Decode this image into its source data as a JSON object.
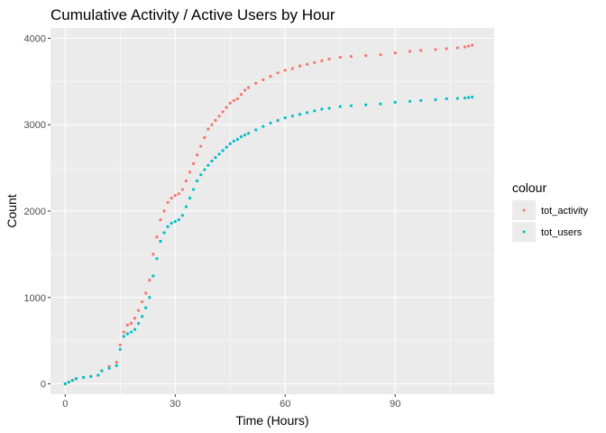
{
  "chart_data": {
    "type": "scatter",
    "title": "Cumulative Activity / Active Users by Hour",
    "xlabel": "Time (Hours)",
    "ylabel": "Count",
    "xlim": [
      -4,
      117
    ],
    "ylim": [
      -120,
      4120
    ],
    "x_ticks": [
      0,
      30,
      60,
      90
    ],
    "x_tick_labels": [
      "0",
      "30",
      "60",
      "90"
    ],
    "y_ticks": [
      0,
      1000,
      2000,
      3000,
      4000
    ],
    "y_tick_labels": [
      "0",
      "1000",
      "2000",
      "3000",
      "4000"
    ],
    "grid": true,
    "legend": {
      "title": "colour",
      "placement": "right"
    },
    "series": [
      {
        "name": "tot_activity",
        "color": "#F8766D",
        "x": [
          0,
          1,
          2,
          3,
          5,
          7,
          9,
          10,
          12,
          14,
          15,
          16,
          17,
          18,
          19,
          20,
          21,
          22,
          23,
          24,
          25,
          26,
          27,
          28,
          29,
          30,
          31,
          32,
          33,
          34,
          35,
          36,
          37,
          38,
          39,
          40,
          41,
          42,
          43,
          44,
          45,
          46,
          47,
          48,
          49,
          50,
          52,
          54,
          56,
          58,
          60,
          62,
          64,
          66,
          68,
          70,
          72,
          75,
          78,
          82,
          86,
          90,
          94,
          97,
          101,
          104,
          107,
          109,
          110,
          111
        ],
        "y": [
          0,
          20,
          40,
          60,
          75,
          85,
          100,
          150,
          200,
          250,
          450,
          600,
          680,
          700,
          760,
          850,
          950,
          1050,
          1200,
          1500,
          1700,
          1900,
          2000,
          2100,
          2150,
          2180,
          2200,
          2250,
          2350,
          2450,
          2550,
          2650,
          2750,
          2850,
          2950,
          3000,
          3050,
          3100,
          3150,
          3200,
          3250,
          3280,
          3300,
          3350,
          3400,
          3430,
          3480,
          3520,
          3560,
          3600,
          3630,
          3650,
          3680,
          3700,
          3720,
          3740,
          3760,
          3780,
          3790,
          3800,
          3810,
          3830,
          3850,
          3860,
          3870,
          3880,
          3890,
          3900,
          3910,
          3920
        ]
      },
      {
        "name": "tot_users",
        "color": "#00BFC4",
        "x": [
          0,
          1,
          2,
          3,
          5,
          7,
          9,
          10,
          12,
          14,
          15,
          16,
          17,
          18,
          19,
          20,
          21,
          22,
          23,
          24,
          25,
          26,
          27,
          28,
          29,
          30,
          31,
          32,
          33,
          34,
          35,
          36,
          37,
          38,
          39,
          40,
          41,
          42,
          43,
          44,
          45,
          46,
          47,
          48,
          49,
          50,
          52,
          54,
          56,
          58,
          60,
          62,
          64,
          66,
          68,
          70,
          72,
          75,
          78,
          82,
          86,
          90,
          94,
          97,
          101,
          104,
          107,
          109,
          110,
          111
        ],
        "y": [
          0,
          20,
          40,
          60,
          75,
          85,
          100,
          150,
          180,
          210,
          400,
          550,
          580,
          600,
          630,
          700,
          780,
          880,
          1000,
          1250,
          1450,
          1650,
          1750,
          1820,
          1860,
          1880,
          1900,
          1950,
          2050,
          2150,
          2250,
          2350,
          2420,
          2480,
          2530,
          2580,
          2620,
          2660,
          2700,
          2740,
          2780,
          2810,
          2830,
          2860,
          2880,
          2900,
          2940,
          2980,
          3020,
          3050,
          3080,
          3100,
          3120,
          3140,
          3160,
          3180,
          3190,
          3210,
          3220,
          3230,
          3240,
          3260,
          3270,
          3280,
          3290,
          3300,
          3305,
          3310,
          3315,
          3320
        ]
      }
    ]
  }
}
